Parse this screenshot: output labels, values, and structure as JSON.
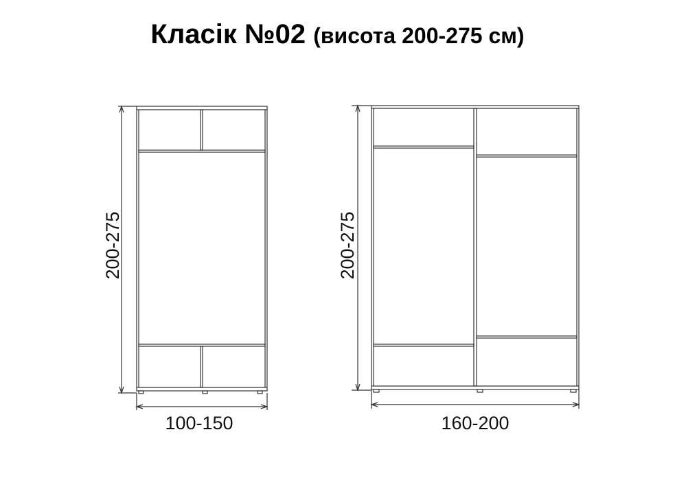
{
  "title": {
    "main": "Класік №02",
    "sub": "(висота 200-275 см)"
  },
  "wardrobes": [
    {
      "height_label": "200-275",
      "width_label": "100-150"
    },
    {
      "height_label": "200-275",
      "width_label": "160-200"
    }
  ],
  "colors": {
    "line": "#333333",
    "text": "#000000"
  }
}
